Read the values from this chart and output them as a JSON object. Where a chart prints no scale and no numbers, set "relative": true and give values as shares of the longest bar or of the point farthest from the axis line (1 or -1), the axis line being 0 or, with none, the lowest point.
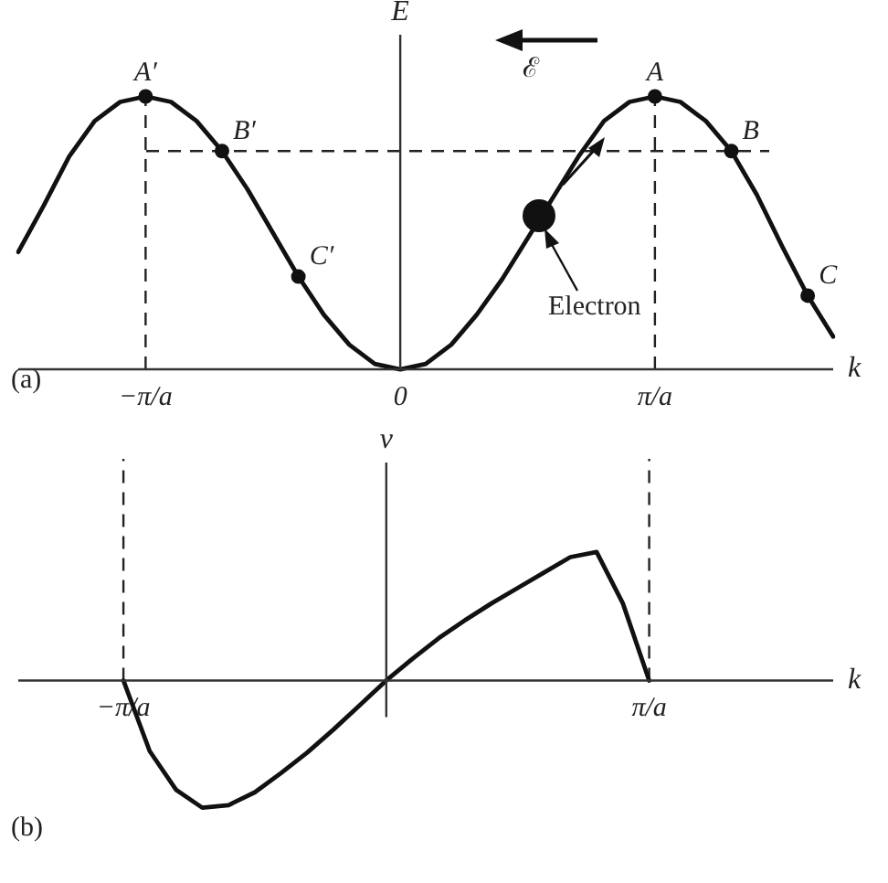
{
  "chart_data": [
    {
      "type": "line",
      "xlabel": "k",
      "ylabel": "E",
      "relative": true,
      "grid": false,
      "legend": false,
      "line_style": "solid",
      "categories": [
        null,
        null,
        null,
        null,
        null,
        "−π/a",
        null,
        null,
        null,
        null,
        null,
        null,
        null,
        null,
        null,
        "0",
        null,
        null,
        null,
        null,
        null,
        null,
        null,
        null,
        null,
        "π/a",
        null,
        null,
        null,
        null,
        null,
        null,
        null
      ],
      "series": [
        {
          "type": "line",
          "color": "#111111",
          "marker": "none",
          "values": [
            0.43,
            0.6,
            0.78,
            0.91,
            0.98,
            1.0,
            0.98,
            0.91,
            0.8,
            0.66,
            0.5,
            0.34,
            0.2,
            0.09,
            0.02,
            0,
            0.02,
            0.09,
            0.2,
            0.33,
            0.48,
            0.63,
            0.78,
            0.91,
            0.98,
            1.0,
            0.98,
            0.91,
            0.8,
            0.64,
            0.45,
            0.27,
            0.12
          ]
        },
        {
          "type": "scatter",
          "color": "#111111",
          "marker": "circle",
          "values": [
            null,
            null,
            null,
            null,
            null,
            1.0,
            null,
            null,
            0.8,
            null,
            null,
            0.34,
            null,
            null,
            null,
            null,
            null,
            null,
            null,
            null,
            null,
            null,
            null,
            null,
            null,
            1.0,
            null,
            null,
            0.8,
            null,
            null,
            0.27,
            null
          ]
        }
      ],
      "ref_lines": [
        {
          "axis": "x",
          "value": "−π/a",
          "line_style": "dashed"
        },
        {
          "axis": "x",
          "value": "π/a",
          "line_style": "dashed"
        },
        {
          "axis": "y",
          "value": 0.8,
          "line_style": "dashed"
        }
      ],
      "annotations": [
        "A′",
        "B′",
        "C′",
        "A",
        "B",
        "C",
        "(a)",
        "Electron",
        "ℰ"
      ]
    },
    {
      "type": "line",
      "xlabel": "k",
      "ylabel": "v",
      "relative": true,
      "grid": false,
      "legend": false,
      "line_style": "solid",
      "categories": [
        null,
        null,
        null,
        null,
        "−π/a",
        null,
        null,
        null,
        null,
        null,
        null,
        null,
        null,
        null,
        null,
        null,
        null,
        null,
        null,
        null,
        null,
        null,
        null,
        null,
        "π/a",
        null,
        null,
        null,
        null,
        null,
        null,
        null
      ],
      "series": [
        {
          "type": "line",
          "color": "#111111",
          "marker": "none",
          "values": [
            null,
            null,
            null,
            null,
            0,
            -0.55,
            -0.85,
            -0.99,
            -0.97,
            -0.87,
            -0.72,
            -0.56,
            -0.38,
            -0.19,
            0,
            0.17,
            0.33,
            0.47,
            0.6,
            0.72,
            0.84,
            0.96,
            1.0,
            0.6,
            0,
            null,
            null,
            null,
            null,
            null,
            null,
            null
          ]
        }
      ],
      "ref_lines": [
        {
          "axis": "x",
          "value": "−π/a",
          "line_style": "dashed"
        },
        {
          "axis": "x",
          "value": "π/a",
          "line_style": "dashed"
        }
      ],
      "annotations": [
        "(b)"
      ]
    }
  ]
}
